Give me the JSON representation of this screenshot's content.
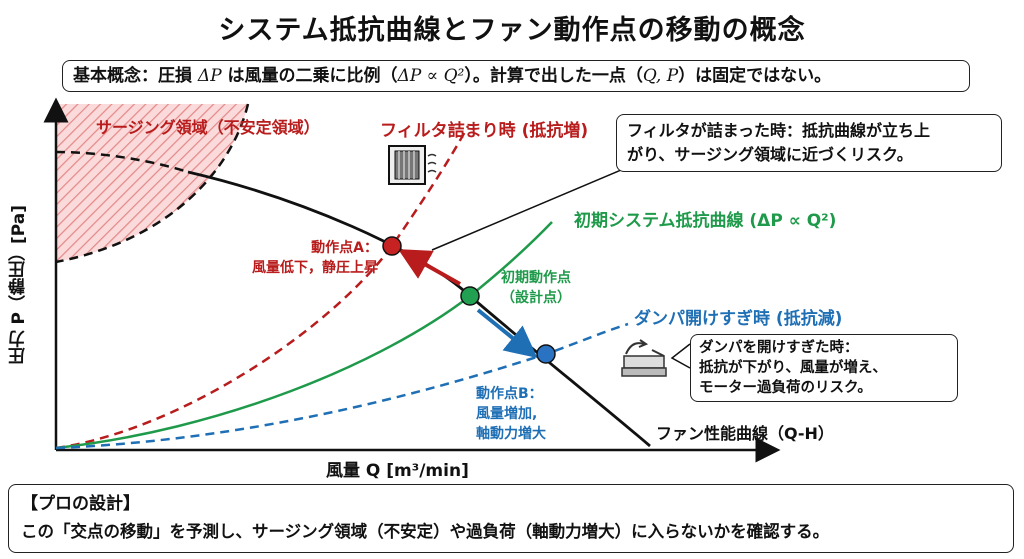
{
  "title": "システム抵抗曲線とファン動作点の移動の概念",
  "concept_box": {
    "prefix": "基本概念：圧損 ",
    "formula_1": "ΔP",
    "middle": " は風量の二乗に比例（",
    "formula_2": "ΔP ∝ Q²",
    "after": "）。計算で出した一点（",
    "point": "Q, P",
    "suffix": "）は固定ではない。"
  },
  "axes": {
    "y_label": "圧力 P（静圧）[Pa]",
    "x_label": "風量 Q [m³/min]"
  },
  "regions": {
    "surging_label": "サージング領域（不安定領域）"
  },
  "curves": {
    "filter": {
      "label": "フィルタ詰まり時 (抵抗増)",
      "color": "#b81c1c"
    },
    "initial": {
      "label": "初期システム抵抗曲線 (ΔP ∝ Q²)",
      "color": "#1e9a4a"
    },
    "damper": {
      "label": "ダンパ開けすぎ時 (抵抗減)",
      "color": "#1f6fb5"
    },
    "fan": {
      "label": "ファン性能曲線（Q-H）",
      "color": "#111111"
    }
  },
  "points": {
    "a": {
      "line1": "動作点A：",
      "line2": "風量低下，静圧上昇",
      "color": "#b81c1c"
    },
    "initial": {
      "line1": "初期動作点",
      "line2": "（設計点）",
      "color": "#1e9a4a"
    },
    "b": {
      "line1": "動作点B：",
      "line2": "風量増加,",
      "line3": "軸動力増大",
      "color": "#1f6fb5"
    }
  },
  "callouts": {
    "filter": {
      "line1": "フィルタが詰まった時：抵抗曲線が立ち上",
      "line2": "がり、サージング領域に近づくリスク。"
    },
    "damper": {
      "line1": "ダンパを開けすぎた時：",
      "line2": "抵抗が下がり、風量が増え、",
      "line3": "モーター過負荷のリスク。"
    }
  },
  "pro_box": {
    "heading": "【プロの設計】",
    "body": "この「交点の移動」を予測し、サージング領域（不安定）や過負荷（軸動力増大）に入らないかを確認する。"
  },
  "icons": [
    "filter-icon",
    "damper-icon"
  ]
}
